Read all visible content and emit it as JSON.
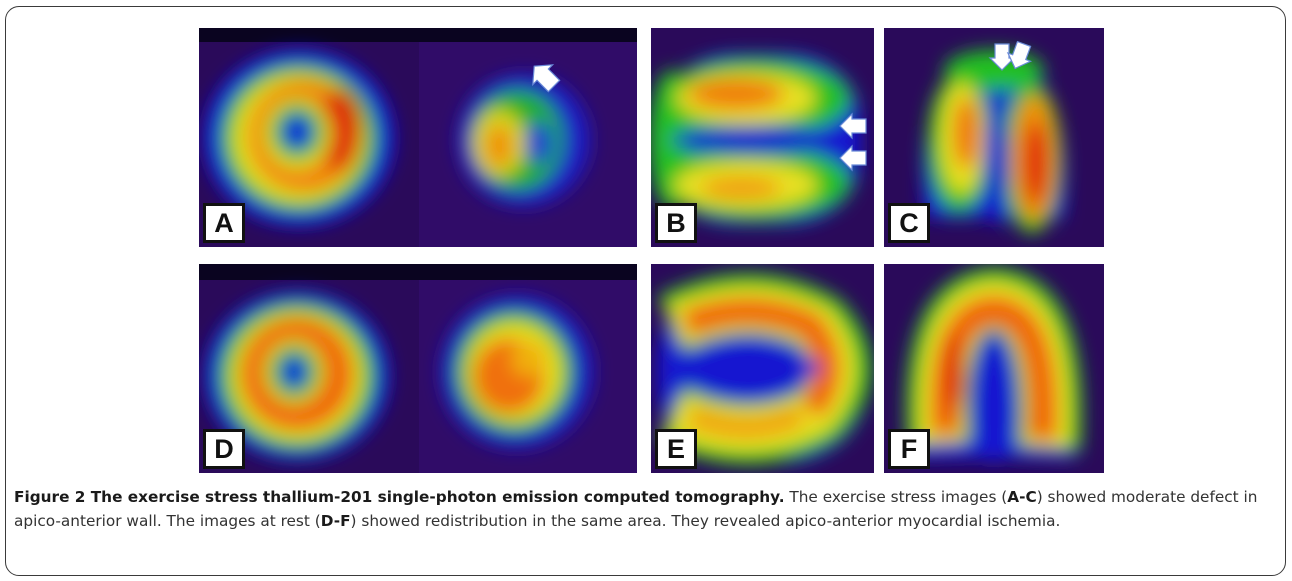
{
  "figure": {
    "panel_labels": [
      "A",
      "B",
      "C",
      "D",
      "E",
      "F"
    ],
    "caption": {
      "title": "Figure 2 The exercise stress thallium-201 single-photon emission computed tomography.",
      "seg1": " The exercise stress images (",
      "ref1": "A-C",
      "seg2": ") showed moderate defect in apico-anterior wall. The images at rest (",
      "ref2": "D-F",
      "seg3": ") showed redistribution in the same area. They revealed apico-anterior myocardial ischemia."
    }
  }
}
